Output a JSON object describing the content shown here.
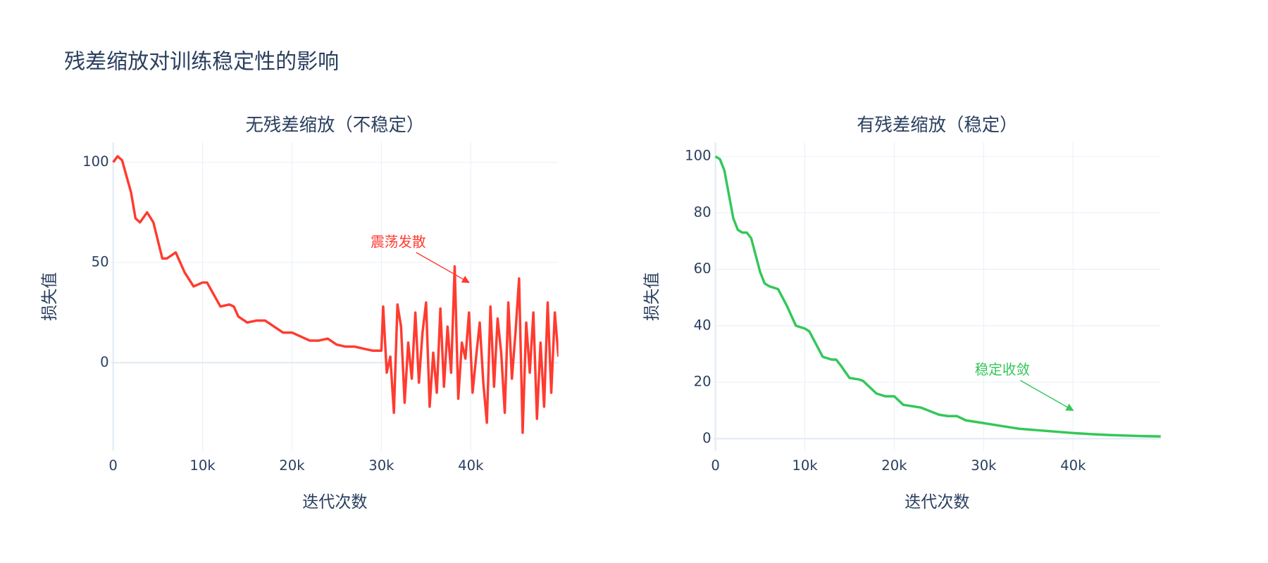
{
  "title": "残差缩放对训练稳定性的影响",
  "chart_data": [
    {
      "type": "line",
      "title": "无残差缩放（不稳定）",
      "x_label": "迭代次数",
      "y_label": "损失值",
      "xlim": [
        -200,
        49800
      ],
      "ylim": [
        -44,
        110
      ],
      "xticks": [
        0,
        {
          "value": 10000,
          "label": "10k"
        },
        {
          "value": 20000,
          "label": "20k"
        },
        {
          "value": 30000,
          "label": "30k"
        },
        {
          "value": 40000,
          "label": "40k"
        }
      ],
      "yticks": [
        0,
        50,
        100
      ],
      "grid": true,
      "series": [
        {
          "name": "无残差缩放",
          "color": "#ff3b30",
          "x": [
            0,
            500,
            1000,
            2000,
            2500,
            3000,
            3800,
            4500,
            5500,
            6000,
            7000,
            8000,
            9000,
            10000,
            10500,
            11000,
            12000,
            13000,
            13500,
            14000,
            15000,
            16000,
            17000,
            18000,
            19000,
            20000,
            21000,
            22000,
            23000,
            24000,
            25000,
            26000,
            27000,
            28000,
            29000,
            30000,
            30200,
            30600,
            31000,
            31400,
            31800,
            32200,
            32600,
            33000,
            33400,
            33800,
            34200,
            34600,
            35000,
            35400,
            35800,
            36200,
            36600,
            37000,
            37400,
            37800,
            38200,
            38600,
            39000,
            39400,
            39800,
            40200,
            40600,
            41000,
            41400,
            41800,
            42200,
            42600,
            43000,
            43400,
            43800,
            44200,
            44600,
            45000,
            45400,
            45800,
            46200,
            46600,
            47000,
            47400,
            47800,
            48200,
            48600,
            49000,
            49400,
            49800
          ],
          "values": [
            100,
            103,
            101,
            85,
            72,
            70,
            75,
            70,
            52,
            52,
            55,
            45,
            38,
            40,
            40,
            36,
            28,
            29,
            28,
            23,
            20,
            21,
            21,
            18,
            15,
            15,
            13,
            11,
            11,
            12,
            9,
            8,
            8,
            7,
            6,
            6,
            28,
            -5,
            3,
            -25,
            29,
            18,
            -20,
            10,
            -8,
            25,
            -10,
            15,
            30,
            -22,
            5,
            -15,
            27,
            -12,
            18,
            -5,
            48,
            -18,
            10,
            2,
            25,
            -15,
            3,
            20,
            -10,
            -30,
            28,
            -12,
            22,
            5,
            -25,
            30,
            -8,
            15,
            42,
            -35,
            20,
            -5,
            25,
            -28,
            10,
            -22,
            30,
            -15,
            25,
            3
          ]
        }
      ],
      "annotation": {
        "text": "震荡发散",
        "x": 39800,
        "y": 40,
        "color": "#ff3b30"
      }
    },
    {
      "type": "line",
      "title": "有残差缩放（稳定）",
      "x_label": "迭代次数",
      "y_label": "损失值",
      "xlim": [
        -200,
        49800
      ],
      "ylim": [
        -4.3,
        105
      ],
      "xticks": [
        0,
        {
          "value": 10000,
          "label": "10k"
        },
        {
          "value": 20000,
          "label": "20k"
        },
        {
          "value": 30000,
          "label": "30k"
        },
        {
          "value": 40000,
          "label": "40k"
        }
      ],
      "yticks": [
        0,
        20,
        40,
        60,
        80,
        100
      ],
      "grid": true,
      "series": [
        {
          "name": "有残差缩放",
          "color": "#34c759",
          "x": [
            0,
            500,
            1000,
            2000,
            2500,
            3000,
            3500,
            4000,
            4500,
            5000,
            5500,
            6000,
            7000,
            8000,
            9000,
            10000,
            10500,
            11000,
            12000,
            13000,
            13500,
            14000,
            15000,
            16000,
            16500,
            18000,
            19000,
            20000,
            21000,
            22000,
            23000,
            25000,
            26000,
            27000,
            28000,
            29000,
            30000,
            32000,
            34000,
            36000,
            38000,
            40000,
            42000,
            44000,
            46000,
            48000,
            50000
          ],
          "values": [
            100,
            99,
            95,
            78,
            74,
            73,
            73,
            71,
            65,
            59,
            55,
            54,
            53,
            47,
            40,
            39,
            38,
            35,
            29,
            28,
            28,
            26,
            21.5,
            21,
            20.5,
            16,
            15,
            15,
            12,
            11.5,
            11,
            8.5,
            8,
            8,
            6.5,
            6,
            5.5,
            4.5,
            3.5,
            3,
            2.5,
            2,
            1.6,
            1.3,
            1.1,
            0.9,
            0.8
          ]
        }
      ],
      "annotation": {
        "text": "稳定收敛",
        "x": 40000,
        "y": 10,
        "color": "#34c759"
      }
    }
  ]
}
